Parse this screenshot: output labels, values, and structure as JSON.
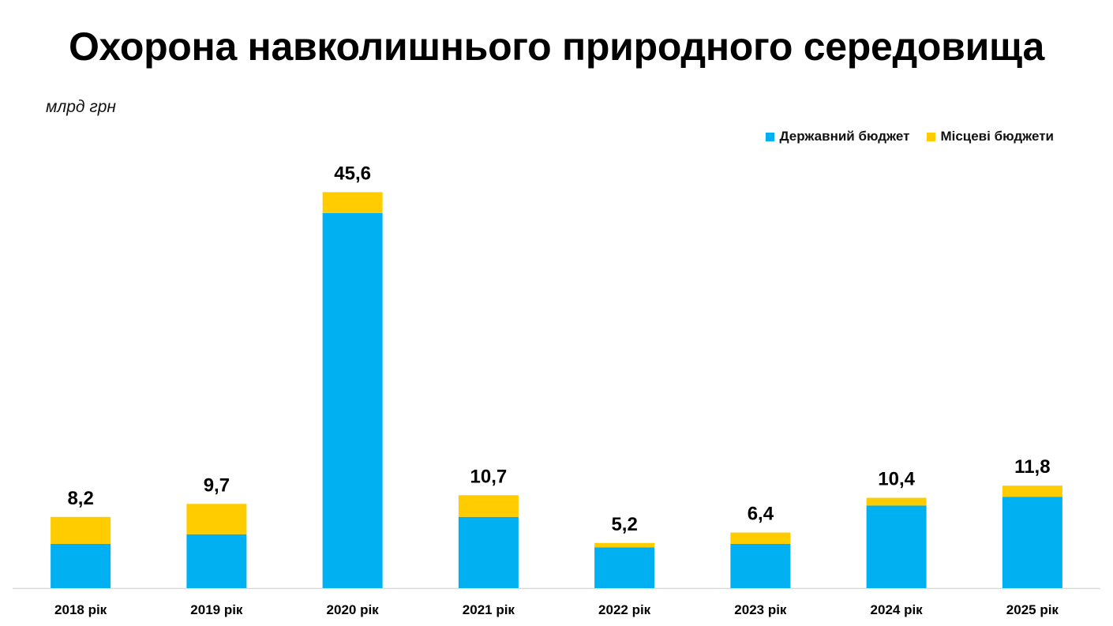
{
  "title": "Охорона навколишнього природного середовища",
  "unit": "млрд грн",
  "colors": {
    "state": "#00B0F0",
    "local": "#FFCC00",
    "axis": "#d9d9d9"
  },
  "chart_data": {
    "type": "bar",
    "stacked": true,
    "title": "Охорона навколишнього природного середовища",
    "ylabel": "млрд грн",
    "ylim": [
      0,
      47
    ],
    "grid": false,
    "legend_position": "top-right",
    "categories": [
      "2018 рік",
      "2019 рік",
      "2020 рік",
      "2021 рік",
      "2022 рік",
      "2023 рік",
      "2024 рік",
      "2025 рік"
    ],
    "series": [
      {
        "name": "Державний бюджет",
        "color": "#00B0F0",
        "values": [
          5.1,
          6.2,
          43.2,
          8.2,
          4.7,
          5.1,
          9.5,
          10.5
        ]
      },
      {
        "name": "Місцеві бюджети",
        "color": "#FFCC00",
        "values": [
          3.1,
          3.5,
          2.4,
          2.5,
          0.5,
          1.3,
          0.9,
          1.3
        ]
      }
    ],
    "totals": [
      "8,2",
      "9,7",
      "45,6",
      "10,7",
      "5,2",
      "6,4",
      "10,4",
      "11,8"
    ]
  }
}
